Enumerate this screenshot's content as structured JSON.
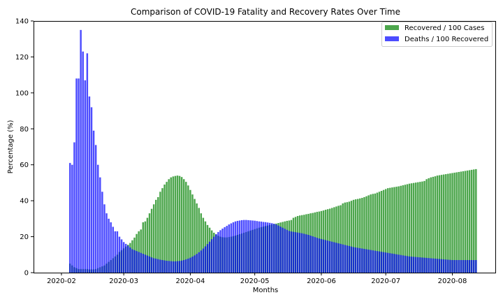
{
  "chart_data": {
    "type": "bar",
    "title": "Comparison of COVID-19 Fatality and Recovery Rates Over Time",
    "xlabel": "Months",
    "ylabel": "Percentage (%)",
    "ylim": [
      0,
      140
    ],
    "y_ticks": [
      0,
      20,
      40,
      60,
      80,
      100,
      120,
      140
    ],
    "x_ticks": [
      {
        "date": "2020-02-01",
        "label": "2020-02"
      },
      {
        "date": "2020-03-01",
        "label": "2020-03"
      },
      {
        "date": "2020-04-01",
        "label": "2020-04"
      },
      {
        "date": "2020-05-01",
        "label": "2020-05"
      },
      {
        "date": "2020-06-01",
        "label": "2020-06"
      },
      {
        "date": "2020-07-01",
        "label": "2020-07"
      },
      {
        "date": "2020-08-01",
        "label": "2020-08"
      }
    ],
    "x_range": [
      "2020-01-19",
      "2020-08-21"
    ],
    "date_range": [
      "2020-02-05",
      "2020-08-10"
    ],
    "grid": false,
    "legend_position": "top-right",
    "series": [
      {
        "name": "Recovered / 100 Cases",
        "color": "#008000",
        "values": [
          5.0,
          4.0,
          3.0,
          2.5,
          2.0,
          2.0,
          2.0,
          2.0,
          2.0,
          1.8,
          1.8,
          1.8,
          2.0,
          2.5,
          3.0,
          3.5,
          4.0,
          5.0,
          6.0,
          7.0,
          8.0,
          9.0,
          10.0,
          11.5,
          12.5,
          13.5,
          14.5,
          15.5,
          16.5,
          18.0,
          19.5,
          21.5,
          23.0,
          24.0,
          28.0,
          28.5,
          30.5,
          33.0,
          35.5,
          38.0,
          40.5,
          42.0,
          45.0,
          47.0,
          49.0,
          50.5,
          52.0,
          53.0,
          53.5,
          53.8,
          54.0,
          53.8,
          53.2,
          52.0,
          50.5,
          48.5,
          46.0,
          43.5,
          41.0,
          38.5,
          36.0,
          33.0,
          30.5,
          28.5,
          26.5,
          25.0,
          23.5,
          22.2,
          21.2,
          20.5,
          20.0,
          19.7,
          19.6,
          19.6,
          19.8,
          20.0,
          20.3,
          20.6,
          21.0,
          21.4,
          21.8,
          22.2,
          22.6,
          23.0,
          23.4,
          23.8,
          24.2,
          24.6,
          25.0,
          25.3,
          25.6,
          25.9,
          26.2,
          26.5,
          26.8,
          27.0,
          27.3,
          27.6,
          27.9,
          28.2,
          28.5,
          28.8,
          29.0,
          29.3,
          30.5,
          31.0,
          31.5,
          31.8,
          32.0,
          32.2,
          32.5,
          32.7,
          33.0,
          33.2,
          33.5,
          33.8,
          34.0,
          34.3,
          34.6,
          35.0,
          35.3,
          35.6,
          36.0,
          36.4,
          36.8,
          37.2,
          37.5,
          38.5,
          39.0,
          39.2,
          39.5,
          40.0,
          40.5,
          40.8,
          41.0,
          41.3,
          41.6,
          42.0,
          42.5,
          43.0,
          43.5,
          43.8,
          44.0,
          44.5,
          45.0,
          45.5,
          46.0,
          46.5,
          47.0,
          47.2,
          47.4,
          47.6,
          47.8,
          48.0,
          48.3,
          48.6,
          48.9,
          49.2,
          49.5,
          49.7,
          49.9,
          50.1,
          50.3,
          50.5,
          50.7,
          51.0,
          52.0,
          52.5,
          53.0,
          53.3,
          53.6,
          54.0,
          54.2,
          54.4,
          54.6,
          54.8,
          55.0,
          55.2,
          55.4,
          55.6,
          55.8,
          56.0,
          56.2,
          56.4,
          56.6,
          56.8,
          57.0,
          57.2,
          57.4,
          57.6
        ]
      },
      {
        "name": "Deaths / 100 Recovered",
        "color": "#0000ff",
        "values": [
          61.0,
          60.0,
          72.5,
          108.0,
          108.0,
          135.0,
          123.0,
          107.0,
          122.0,
          98.0,
          92.0,
          79.0,
          71.0,
          60.0,
          53.0,
          45.0,
          38.0,
          33.0,
          30.0,
          28.0,
          25.5,
          23.0,
          23.0,
          20.0,
          18.5,
          17.0,
          16.0,
          15.0,
          14.0,
          13.0,
          12.5,
          12.0,
          11.5,
          11.0,
          10.5,
          10.0,
          9.5,
          9.0,
          8.5,
          8.0,
          7.8,
          7.5,
          7.2,
          7.0,
          6.8,
          6.6,
          6.5,
          6.4,
          6.3,
          6.3,
          6.4,
          6.5,
          6.7,
          7.0,
          7.4,
          7.8,
          8.3,
          8.9,
          9.6,
          10.4,
          11.3,
          12.3,
          13.4,
          14.6,
          15.9,
          17.2,
          18.6,
          20.0,
          21.4,
          22.6,
          23.6,
          24.5,
          25.3,
          26.0,
          26.8,
          27.4,
          28.0,
          28.5,
          28.8,
          29.0,
          29.2,
          29.3,
          29.3,
          29.2,
          29.1,
          29.0,
          28.9,
          28.7,
          28.5,
          28.4,
          28.2,
          28.1,
          27.9,
          27.7,
          27.5,
          27.2,
          26.8,
          26.2,
          25.6,
          25.0,
          24.4,
          23.8,
          23.2,
          22.9,
          22.7,
          22.5,
          22.3,
          22.1,
          21.9,
          21.6,
          21.3,
          21.0,
          20.6,
          20.2,
          19.8,
          19.4,
          19.0,
          18.7,
          18.4,
          18.1,
          17.8,
          17.5,
          17.2,
          16.9,
          16.6,
          16.3,
          16.0,
          15.7,
          15.4,
          15.1,
          14.8,
          14.5,
          14.2,
          14.0,
          13.8,
          13.6,
          13.4,
          13.2,
          13.0,
          12.8,
          12.6,
          12.4,
          12.2,
          12.0,
          11.8,
          11.6,
          11.4,
          11.2,
          11.0,
          10.8,
          10.6,
          10.4,
          10.2,
          10.0,
          9.8,
          9.6,
          9.4,
          9.2,
          9.0,
          8.9,
          8.8,
          8.7,
          8.6,
          8.5,
          8.4,
          8.3,
          8.2,
          8.1,
          8.0,
          7.9,
          7.8,
          7.7,
          7.6,
          7.5,
          7.4,
          7.3,
          7.2,
          7.1,
          7.0,
          7.0,
          7.0,
          7.0,
          7.0,
          7.0,
          7.0,
          7.0,
          7.0,
          7.0,
          7.0,
          7.0
        ]
      }
    ]
  }
}
